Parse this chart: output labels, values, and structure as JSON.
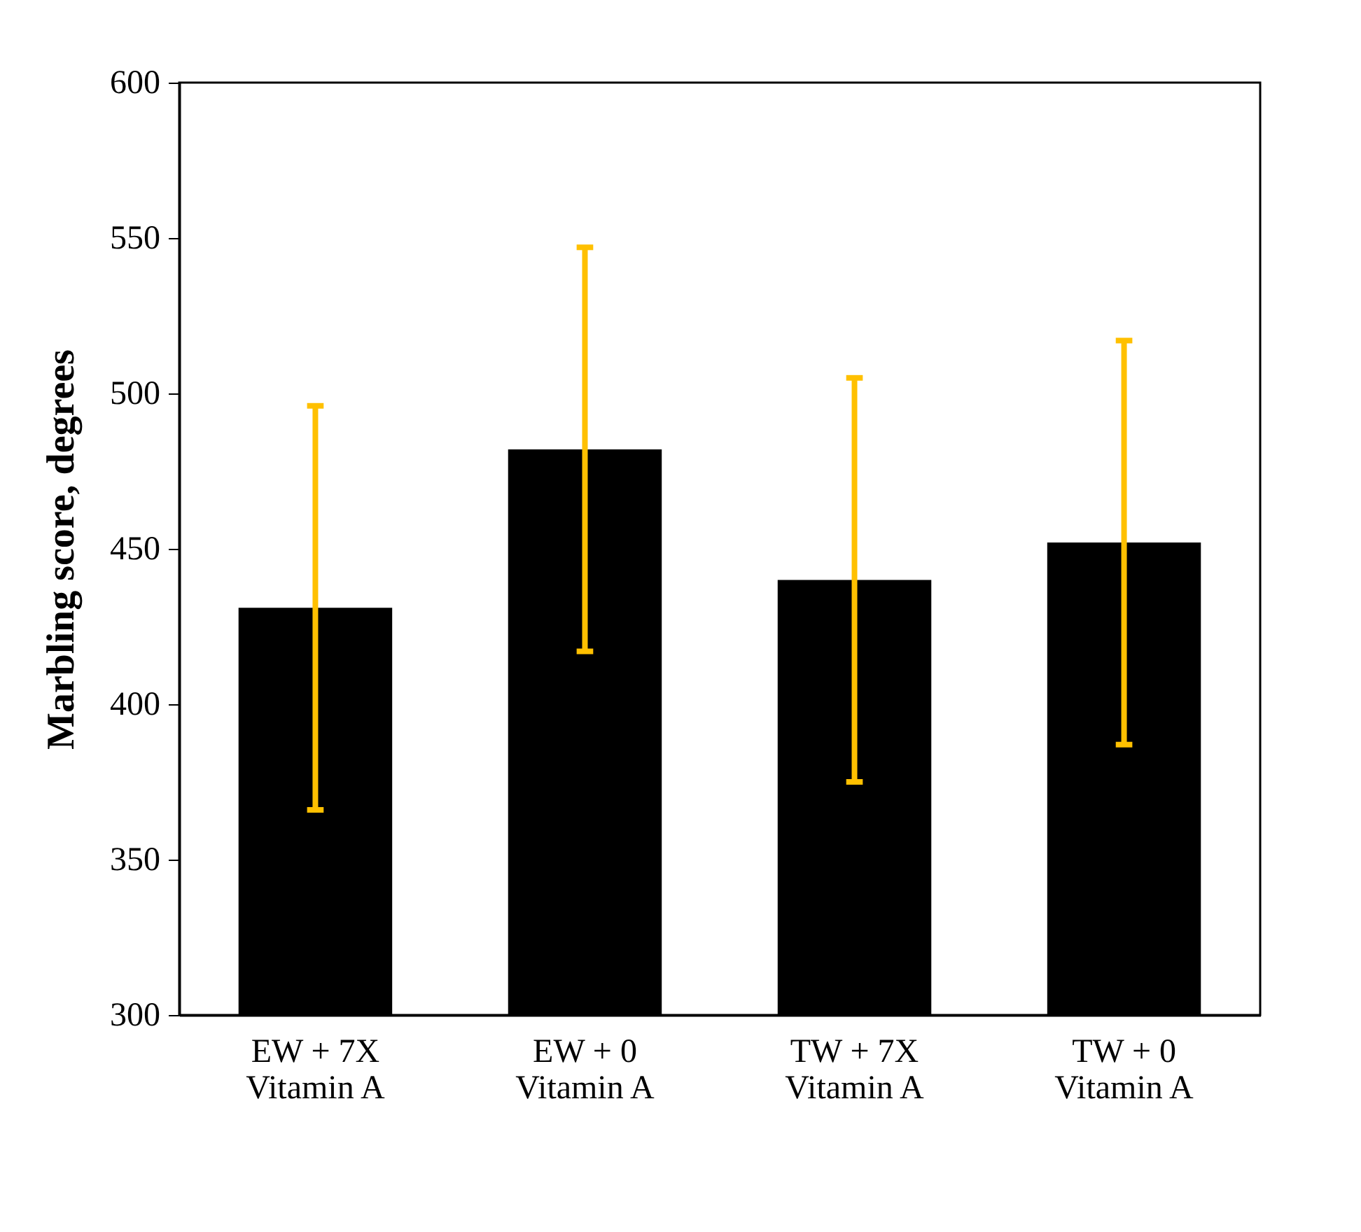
{
  "chart_data": {
    "type": "bar",
    "ylabel": "Marbling score, degrees",
    "categories": [
      "EW + 7X\nVitamin A",
      "EW + 0\nVitamin A",
      "TW + 7X\nVitamin A",
      "TW + 0\nVitamin A"
    ],
    "values": [
      431,
      482,
      440,
      452
    ],
    "color": "#000000",
    "errors": [
      65,
      65,
      65,
      65
    ],
    "ylim": [
      300,
      600
    ],
    "yticks": [
      300,
      350,
      400,
      450,
      500,
      550,
      600
    ],
    "grid": false
  }
}
